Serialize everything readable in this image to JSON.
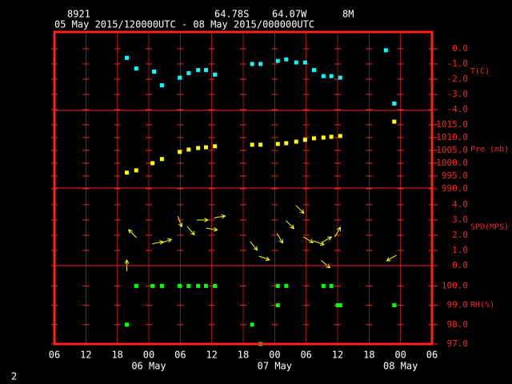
{
  "header": {
    "station": "8921",
    "lat": "64.78S",
    "lon": "64.07W",
    "elev": "8M",
    "period": "05 May 2015/120000UTC - 08 May 2015/000000UTC",
    "page": "2"
  },
  "chart_data": [
    {
      "type": "scatter",
      "ylabel": "T(C)",
      "color": "#00ffff",
      "xlim": [
        0,
        72
      ],
      "ylim": [
        -4.05,
        1.1
      ],
      "yticks": [
        {
          "value": 0,
          "label": "0.0"
        },
        {
          "value": -1,
          "label": "-1.0"
        },
        {
          "value": -2,
          "label": "-2.0"
        },
        {
          "value": -3,
          "label": "-3.0"
        },
        {
          "value": -4,
          "label": "-4.0"
        }
      ],
      "x": [
        13.8,
        15.6,
        19.0,
        20.5,
        23.9,
        25.6,
        27.4,
        28.9,
        30.6,
        37.7,
        39.3,
        42.6,
        44.2,
        46.1,
        47.8,
        49.5,
        51.3,
        52.8,
        54.5,
        63.2,
        64.8
      ],
      "values": [
        -0.6,
        -1.3,
        -1.5,
        -2.4,
        -1.9,
        -1.6,
        -1.4,
        -1.4,
        -1.7,
        -1.0,
        -1.0,
        -0.8,
        -0.7,
        -0.9,
        -0.9,
        -1.4,
        -1.8,
        -1.8,
        -1.9,
        -0.1,
        -3.6
      ]
    },
    {
      "type": "scatter",
      "ylabel": "Pre (mb)",
      "color": "#ffff00",
      "xlim": [
        0,
        72
      ],
      "ylim": [
        990.3,
        1020.6
      ],
      "yticks": [
        {
          "value": 1015,
          "label": "1015.0"
        },
        {
          "value": 1010,
          "label": "1010.0"
        },
        {
          "value": 1005,
          "label": "1005.0"
        },
        {
          "value": 1000,
          "label": "1000.0"
        },
        {
          "value": 995,
          "label": "995.0"
        },
        {
          "value": 990,
          "label": "990.0"
        }
      ],
      "x": [
        13.8,
        15.6,
        18.7,
        20.5,
        23.9,
        25.6,
        27.4,
        28.9,
        30.6,
        37.7,
        39.3,
        42.6,
        44.2,
        46.1,
        47.8,
        49.5,
        51.3,
        52.8,
        54.5,
        64.8
      ],
      "values": [
        996.3,
        997.2,
        1000,
        1001.6,
        1004.4,
        1005.3,
        1005.9,
        1006.2,
        1006.6,
        1007.2,
        1007.2,
        1007.5,
        1007.8,
        1008.4,
        1009.1,
        1009.7,
        1010,
        1010.3,
        1010.6,
        1016.2
      ]
    },
    {
      "type": "arrows",
      "ylabel": "SPD(MPS)",
      "color": "#ffff00",
      "xlim": [
        0,
        72
      ],
      "ylim": [
        0,
        5.1
      ],
      "yticks": [
        {
          "value": 4,
          "label": "4.0"
        },
        {
          "value": 3,
          "label": "3.0"
        },
        {
          "value": 2,
          "label": "2.0"
        },
        {
          "value": 1,
          "label": "1.0"
        },
        {
          "value": 0,
          "label": "0.0"
        }
      ],
      "x": [
        13.8,
        14.9,
        19.7,
        21.3,
        23.9,
        26.0,
        28.2,
        30.0,
        31.5,
        38.0,
        40.0,
        43.0,
        44.9,
        46.8,
        48.4,
        50.4,
        51.7,
        51.9,
        54.0,
        64.3
      ],
      "values": [
        0,
        2.1,
        1.5,
        1.6,
        2.9,
        2.3,
        3.0,
        2.4,
        3.2,
        1.3,
        0.5,
        1.8,
        2.7,
        3.7,
        1.7,
        1.5,
        0.1,
        1.7,
        2.2,
        0.5
      ],
      "direction": [
        0,
        315,
        80,
        70,
        160,
        140,
        90,
        100,
        80,
        140,
        110,
        150,
        135,
        135,
        120,
        110,
        130,
        60,
        30,
        240
      ]
    },
    {
      "type": "scatter",
      "ylabel": "RH(%)",
      "color": "#00ff00",
      "xlim": [
        0,
        72
      ],
      "ylim": [
        97,
        101.05
      ],
      "yticks": [
        {
          "value": 100,
          "label": "100.0"
        },
        {
          "value": 99,
          "label": "99.0"
        },
        {
          "value": 98,
          "label": "98.0"
        },
        {
          "value": 97,
          "label": "97.0"
        }
      ],
      "x": [
        13.8,
        15.6,
        18.7,
        20.5,
        23.9,
        25.6,
        27.4,
        28.9,
        30.6,
        37.7,
        39.3,
        42.6,
        42.6,
        44.2,
        51.3,
        52.8,
        54.0,
        54.5,
        64.8
      ],
      "values": [
        98,
        100,
        100,
        100,
        100,
        100,
        100,
        100,
        100,
        98,
        97,
        99,
        100,
        100,
        100,
        100,
        99,
        99,
        99
      ],
      "xticks": [
        {
          "value": 0,
          "label": "06"
        },
        {
          "value": 6,
          "label": "12"
        },
        {
          "value": 12,
          "label": "18"
        },
        {
          "value": 18,
          "label": "00"
        },
        {
          "value": 24,
          "label": "06"
        },
        {
          "value": 30,
          "label": "12"
        },
        {
          "value": 36,
          "label": "18"
        },
        {
          "value": 42,
          "label": "00"
        },
        {
          "value": 48,
          "label": "06"
        },
        {
          "value": 54,
          "label": "12"
        },
        {
          "value": 60,
          "label": "18"
        },
        {
          "value": 66,
          "label": "00"
        },
        {
          "value": 72,
          "label": "06"
        }
      ],
      "date_labels": [
        {
          "value": 18,
          "label": "06 May"
        },
        {
          "value": 42,
          "label": "07 May"
        },
        {
          "value": 66,
          "label": "08 May"
        }
      ]
    }
  ]
}
